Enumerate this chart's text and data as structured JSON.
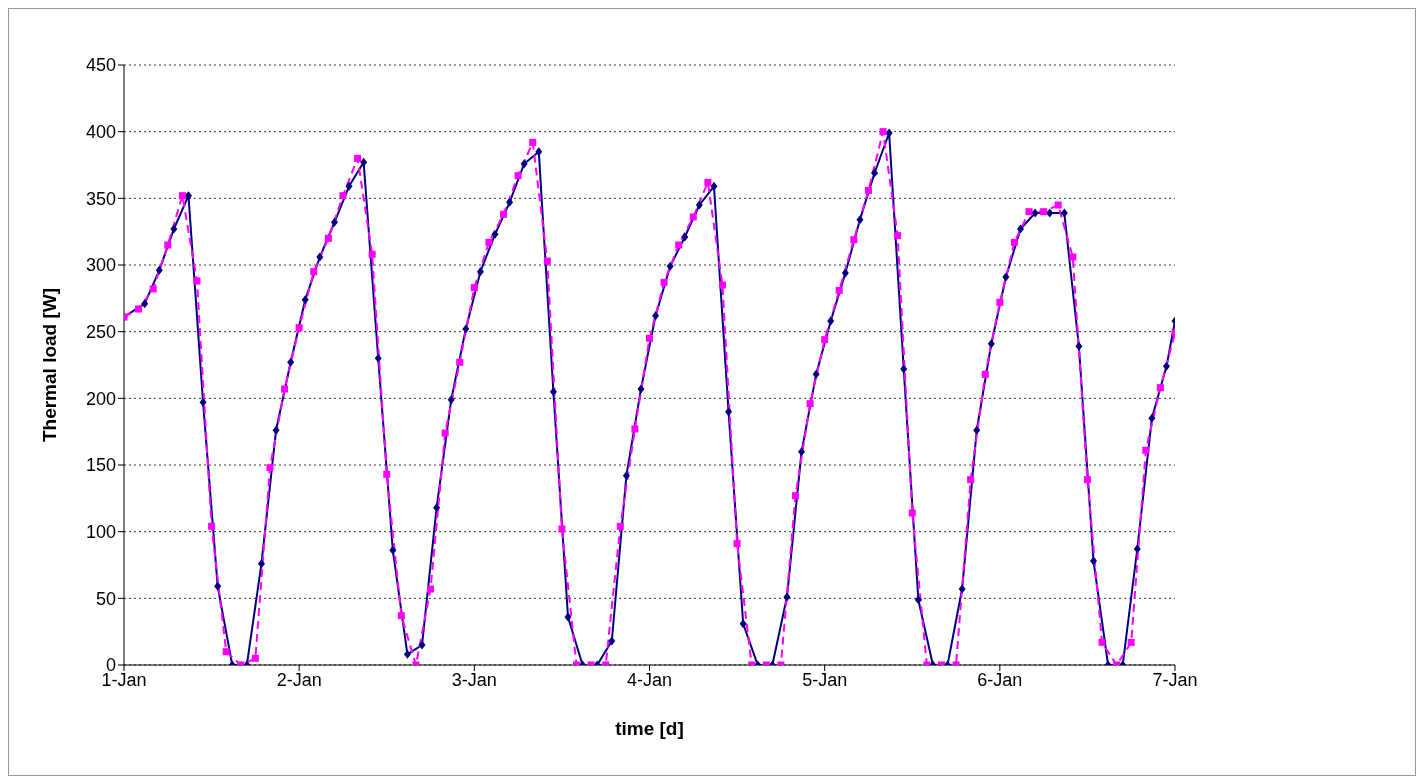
{
  "chart_data": {
    "type": "line",
    "xlabel": "time [d]",
    "ylabel": "Thermal load [W]",
    "xlim": [
      "--01-01",
      "--01-07"
    ],
    "xticks": [
      {
        "value": "--01-01",
        "label": "1-Jan"
      },
      {
        "value": "--01-02",
        "label": "2-Jan"
      },
      {
        "value": "--01-03",
        "label": "3-Jan"
      },
      {
        "value": "--01-04",
        "label": "4-Jan"
      },
      {
        "value": "--01-05",
        "label": "5-Jan"
      },
      {
        "value": "--01-06",
        "label": "6-Jan"
      },
      {
        "value": "--01-07",
        "label": "7-Jan"
      }
    ],
    "ylim": [
      0,
      450
    ],
    "yticks": [
      0,
      50,
      100,
      150,
      200,
      250,
      300,
      350,
      400,
      450
    ],
    "grid": "y",
    "legend": false,
    "series": [
      {
        "color": "#000080",
        "marker": "diamond",
        "line_style": "solid",
        "x": [
          "--01-01T00:00",
          "--01-01T02:50",
          "--01-01T04:50",
          "--01-01T06:50",
          "--01-01T08:50",
          "--01-01T10:50",
          "--01-01T12:50",
          "--01-01T14:50",
          "--01-01T16:50",
          "--01-01T18:50",
          "--01-01T20:50",
          "--01-01T22:50",
          "--01-02T00:50",
          "--01-02T02:50",
          "--01-02T04:50",
          "--01-02T06:50",
          "--01-02T08:50",
          "--01-02T10:50",
          "--01-02T12:50",
          "--01-02T14:50",
          "--01-02T16:50",
          "--01-02T18:50",
          "--01-02T20:50",
          "--01-02T22:50",
          "--01-03T00:50",
          "--01-03T02:50",
          "--01-03T04:50",
          "--01-03T06:50",
          "--01-03T08:50",
          "--01-03T10:50",
          "--01-03T12:50",
          "--01-03T14:50",
          "--01-03T16:50",
          "--01-03T18:50",
          "--01-03T20:50",
          "--01-03T22:50",
          "--01-04T00:50",
          "--01-04T02:50",
          "--01-04T04:50",
          "--01-04T06:50",
          "--01-04T08:50",
          "--01-04T10:50",
          "--01-04T12:50",
          "--01-04T14:50",
          "--01-04T16:50",
          "--01-04T18:50",
          "--01-04T20:50",
          "--01-04T22:50",
          "--01-05T00:50",
          "--01-05T02:50",
          "--01-05T04:50",
          "--01-05T06:50",
          "--01-05T08:50",
          "--01-05T10:50",
          "--01-05T12:50",
          "--01-05T14:50",
          "--01-05T16:50",
          "--01-05T18:50",
          "--01-05T20:50",
          "--01-05T22:50",
          "--01-06T00:50",
          "--01-06T02:50",
          "--01-06T04:50",
          "--01-06T06:50",
          "--01-06T08:50",
          "--01-06T10:50",
          "--01-06T12:50",
          "--01-06T14:50",
          "--01-06T16:50",
          "--01-06T18:50",
          "--01-06T20:50",
          "--01-06T22:50",
          "--01-07T00:00"
        ],
        "values": [
          261,
          271,
          296,
          327,
          352,
          197,
          59,
          0,
          0,
          76,
          176,
          227,
          274,
          306,
          332,
          359,
          377,
          230,
          86,
          8,
          15,
          118,
          199,
          252,
          295,
          323,
          347,
          376,
          385,
          205,
          36,
          0,
          0,
          18,
          142,
          207,
          262,
          299,
          321,
          345,
          359,
          190,
          31,
          0,
          0,
          51,
          160,
          218,
          258,
          294,
          334,
          369,
          399,
          222,
          49,
          0,
          0,
          57,
          176,
          241,
          291,
          327,
          339,
          339,
          339,
          239,
          78,
          0,
          0,
          87,
          185,
          224,
          258
        ]
      },
      {
        "color": "#ff00ff",
        "marker": "square",
        "line_style": "dashed",
        "x": [
          "--01-01T00:00",
          "--01-01T02:00",
          "--01-01T04:00",
          "--01-01T06:00",
          "--01-01T08:00",
          "--01-01T10:00",
          "--01-01T12:00",
          "--01-01T14:00",
          "--01-01T16:00",
          "--01-01T18:00",
          "--01-01T20:00",
          "--01-01T22:00",
          "--01-02T00:00",
          "--01-02T02:00",
          "--01-02T04:00",
          "--01-02T06:00",
          "--01-02T08:00",
          "--01-02T10:00",
          "--01-02T12:00",
          "--01-02T14:00",
          "--01-02T16:00",
          "--01-02T18:00",
          "--01-02T20:00",
          "--01-02T22:00",
          "--01-03T00:00",
          "--01-03T02:00",
          "--01-03T04:00",
          "--01-03T06:00",
          "--01-03T08:00",
          "--01-03T10:00",
          "--01-03T12:00",
          "--01-03T14:00",
          "--01-03T16:00",
          "--01-03T18:00",
          "--01-03T20:00",
          "--01-03T22:00",
          "--01-04T00:00",
          "--01-04T02:00",
          "--01-04T04:00",
          "--01-04T06:00",
          "--01-04T08:00",
          "--01-04T10:00",
          "--01-04T12:00",
          "--01-04T14:00",
          "--01-04T16:00",
          "--01-04T18:00",
          "--01-04T20:00",
          "--01-04T22:00",
          "--01-05T00:00",
          "--01-05T02:00",
          "--01-05T04:00",
          "--01-05T06:00",
          "--01-05T08:00",
          "--01-05T10:00",
          "--01-05T12:00",
          "--01-05T14:00",
          "--01-05T16:00",
          "--01-05T18:00",
          "--01-05T20:00",
          "--01-05T22:00",
          "--01-06T00:00",
          "--01-06T02:00",
          "--01-06T04:00",
          "--01-06T06:00",
          "--01-06T08:00",
          "--01-06T10:00",
          "--01-06T12:00",
          "--01-06T14:00",
          "--01-06T16:00",
          "--01-06T18:00",
          "--01-06T20:00",
          "--01-06T22:00",
          "--01-07T00:00"
        ],
        "values": [
          261,
          267,
          282,
          315,
          352,
          288,
          104,
          10,
          0,
          5,
          148,
          207,
          253,
          295,
          320,
          352,
          380,
          308,
          143,
          37,
          0,
          57,
          174,
          227,
          283,
          317,
          338,
          367,
          392,
          303,
          102,
          0,
          0,
          0,
          104,
          177,
          245,
          287,
          315,
          336,
          362,
          285,
          91,
          0,
          0,
          0,
          127,
          196,
          244,
          281,
          319,
          356,
          400,
          322,
          114,
          0,
          0,
          0,
          139,
          218,
          272,
          317,
          340,
          340,
          345,
          306,
          139,
          17,
          0,
          17,
          161,
          208,
          249
        ]
      }
    ]
  }
}
